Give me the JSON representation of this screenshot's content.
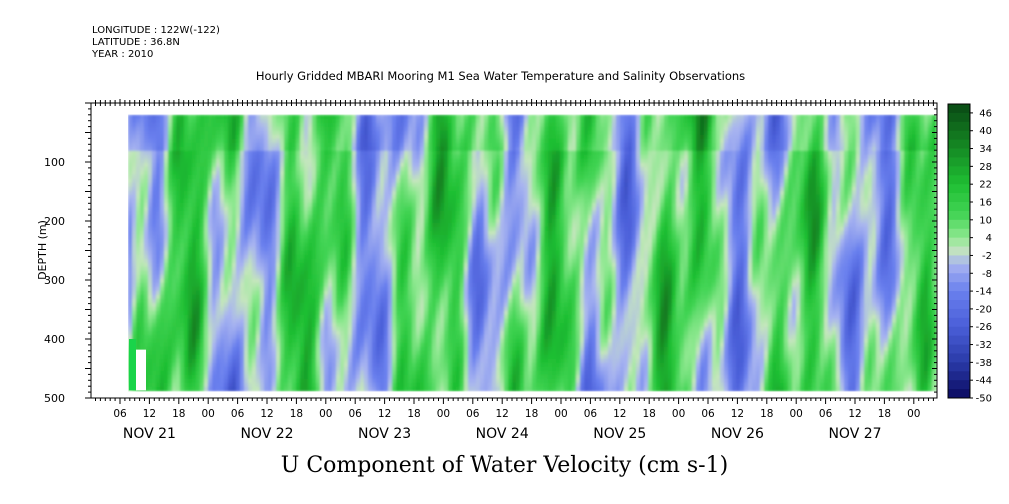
{
  "header": {
    "longitude": "LONGITUDE : 122W(-122)",
    "latitude": "LATITUDE : 36.8N",
    "year": "YEAR : 2010"
  },
  "title": "Hourly Gridded MBARI Mooring M1 Sea Water Temperature and Salinity Observations",
  "caption": "U Component of Water Velocity (cm s-1)",
  "chart_data": {
    "type": "heatmap",
    "ylabel": "DEPTH (m)",
    "ylim": [
      500,
      0
    ],
    "yticks": [
      100,
      200,
      300,
      400,
      500
    ],
    "x_hour_labels": [
      "06",
      "12",
      "18",
      "00",
      "06",
      "12",
      "18",
      "00",
      "06",
      "12",
      "18",
      "00",
      "06",
      "12",
      "18",
      "00",
      "06",
      "12",
      "18",
      "00",
      "06",
      "12",
      "18",
      "00",
      "06",
      "12",
      "18",
      "00"
    ],
    "x_day_labels": [
      "NOV 21",
      "NOV 22",
      "NOV 23",
      "NOV 24",
      "NOV 25",
      "NOV 26",
      "NOV 27"
    ],
    "colorbar": {
      "labels": [
        "46",
        "40",
        "34",
        "28",
        "22",
        "16",
        "10",
        "4",
        "-2",
        "-8",
        "-14",
        "-20",
        "-26",
        "-32",
        "-38",
        "-44",
        "-50"
      ],
      "range": [
        -50,
        49
      ]
    },
    "colors": {
      "green_dark": "#0a4a14",
      "green": "#1fcc3a",
      "green_light": "#7ee87e",
      "neutral": "#c8e8c0",
      "blue_light": "#a8b4f0",
      "blue": "#6a80ee",
      "blue_dark": "#0a0a60"
    }
  }
}
